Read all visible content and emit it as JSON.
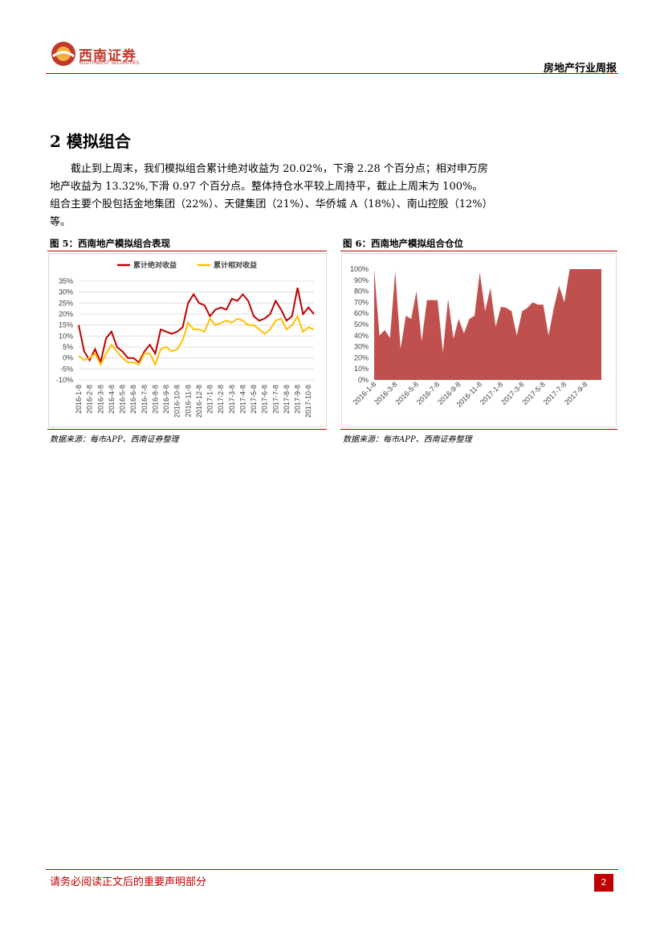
{
  "header": {
    "logo_cn": "西南证券",
    "logo_en": "SOUTHWEST SECURITIES",
    "report_type": "房地产行业周报"
  },
  "section": {
    "title": "2 模拟组合",
    "paragraph": "截止到上周末，我们模拟组合累计绝对收益为 20.02%，下滑 2.28 个百分点；相对申万房地产收益为 13.32%,下滑 0.97 个百分点。整体持仓水平较上周持平，截止上周末为 100%。组合主要个股包括金地集团（22%）、天健集团（21%）、华侨城 A（18%）、南山控股（12%）等。"
  },
  "chart_data": [
    {
      "type": "line",
      "title": "图 5：西南地产模拟组合表现",
      "source": "数据来源：每市APP、西南证券整理",
      "categories": [
        "2016-1-8",
        null,
        "2016-2-8",
        null,
        "2016-3-8",
        null,
        "2016-4-8",
        null,
        "2016-5-8",
        null,
        "2016-6-8",
        null,
        "2016-7-8",
        null,
        "2016-8-8",
        null,
        "2016-9-8",
        null,
        "2016-10-8",
        null,
        "2016-11-8",
        null,
        "2016-12-8",
        null,
        "2017-1-8",
        null,
        "2017-2-8",
        null,
        "2017-3-8",
        null,
        "2017-4-8",
        null,
        "2017-5-8",
        null,
        "2017-6-8",
        null,
        "2017-7-8",
        null,
        "2017-8-8",
        null,
        "2017-9-8",
        null,
        "2017-10-8",
        null
      ],
      "series": [
        {
          "name": "累计绝对收益",
          "color": "#c00000",
          "values": [
            15,
            3,
            -1,
            4,
            -2,
            9,
            12,
            5,
            3,
            0,
            0,
            -2,
            3,
            6,
            2,
            13,
            12,
            11,
            12,
            14,
            25,
            29,
            25,
            24,
            19,
            22,
            23,
            22,
            27,
            26,
            29,
            26,
            19,
            17,
            18,
            20,
            26,
            22,
            17,
            19,
            32,
            20,
            23,
            20
          ]
        },
        {
          "name": "累计相对收益",
          "color": "#ffc000",
          "values": [
            1,
            -1,
            0,
            2,
            -3,
            2,
            6,
            3,
            0,
            -2,
            -2,
            -3,
            2,
            2,
            -3,
            4,
            5,
            3,
            4,
            8,
            16,
            13,
            13,
            12,
            18,
            15,
            16,
            17,
            16,
            18,
            17,
            15,
            15,
            13,
            11,
            13,
            17,
            18,
            13,
            15,
            19,
            12,
            14,
            13
          ]
        }
      ],
      "ylim": [
        -10,
        35
      ],
      "yticks": [
        {
          "value": -10,
          "label": "-10%"
        },
        {
          "value": -5,
          "label": "-5%"
        },
        {
          "value": 0,
          "label": "0%"
        },
        {
          "value": 5,
          "label": "5%"
        },
        {
          "value": 10,
          "label": "10%"
        },
        {
          "value": 15,
          "label": "15%"
        },
        {
          "value": 20,
          "label": "20%"
        },
        {
          "value": 25,
          "label": "25%"
        },
        {
          "value": 30,
          "label": "30%"
        },
        {
          "value": 35,
          "label": "35%"
        }
      ],
      "grid": true,
      "legend": "top"
    },
    {
      "type": "area",
      "title": "图 6：西南地产模拟组合仓位",
      "source": "数据来源：每市APP、西南证券整理",
      "categories": [
        "2016-1-8",
        null,
        null,
        null,
        "2016-3-8",
        null,
        null,
        null,
        "2016-5-8",
        null,
        null,
        null,
        "2016-7-8",
        null,
        null,
        null,
        "2016-9-8",
        null,
        null,
        null,
        "2016-11-8",
        null,
        null,
        null,
        "2017-1-8",
        null,
        null,
        null,
        "2017-3-8",
        null,
        null,
        null,
        "2017-5-8",
        null,
        null,
        null,
        "2017-7-8",
        null,
        null,
        null,
        "2017-9-8",
        null,
        null,
        null
      ],
      "values": [
        100,
        40,
        45,
        38,
        98,
        28,
        58,
        55,
        80,
        35,
        72,
        72,
        72,
        25,
        73,
        37,
        55,
        42,
        55,
        58,
        97,
        62,
        83,
        48,
        66,
        65,
        62,
        40,
        62,
        65,
        70,
        68,
        68,
        40,
        65,
        85,
        70,
        100,
        100,
        100,
        100,
        100,
        100,
        100
      ],
      "color": "#c0504d",
      "ylim": [
        0,
        100
      ],
      "yticks": [
        {
          "value": 0,
          "label": "0%"
        },
        {
          "value": 10,
          "label": "10%"
        },
        {
          "value": 20,
          "label": "20%"
        },
        {
          "value": 30,
          "label": "30%"
        },
        {
          "value": 40,
          "label": "40%"
        },
        {
          "value": 50,
          "label": "50%"
        },
        {
          "value": 60,
          "label": "60%"
        },
        {
          "value": 70,
          "label": "70%"
        },
        {
          "value": 80,
          "label": "80%"
        },
        {
          "value": 90,
          "label": "90%"
        },
        {
          "value": 100,
          "label": "100%"
        }
      ],
      "grid": false
    }
  ],
  "footer": {
    "disclaimer": "请务必阅读正文后的重要声明部分",
    "page": 2
  }
}
